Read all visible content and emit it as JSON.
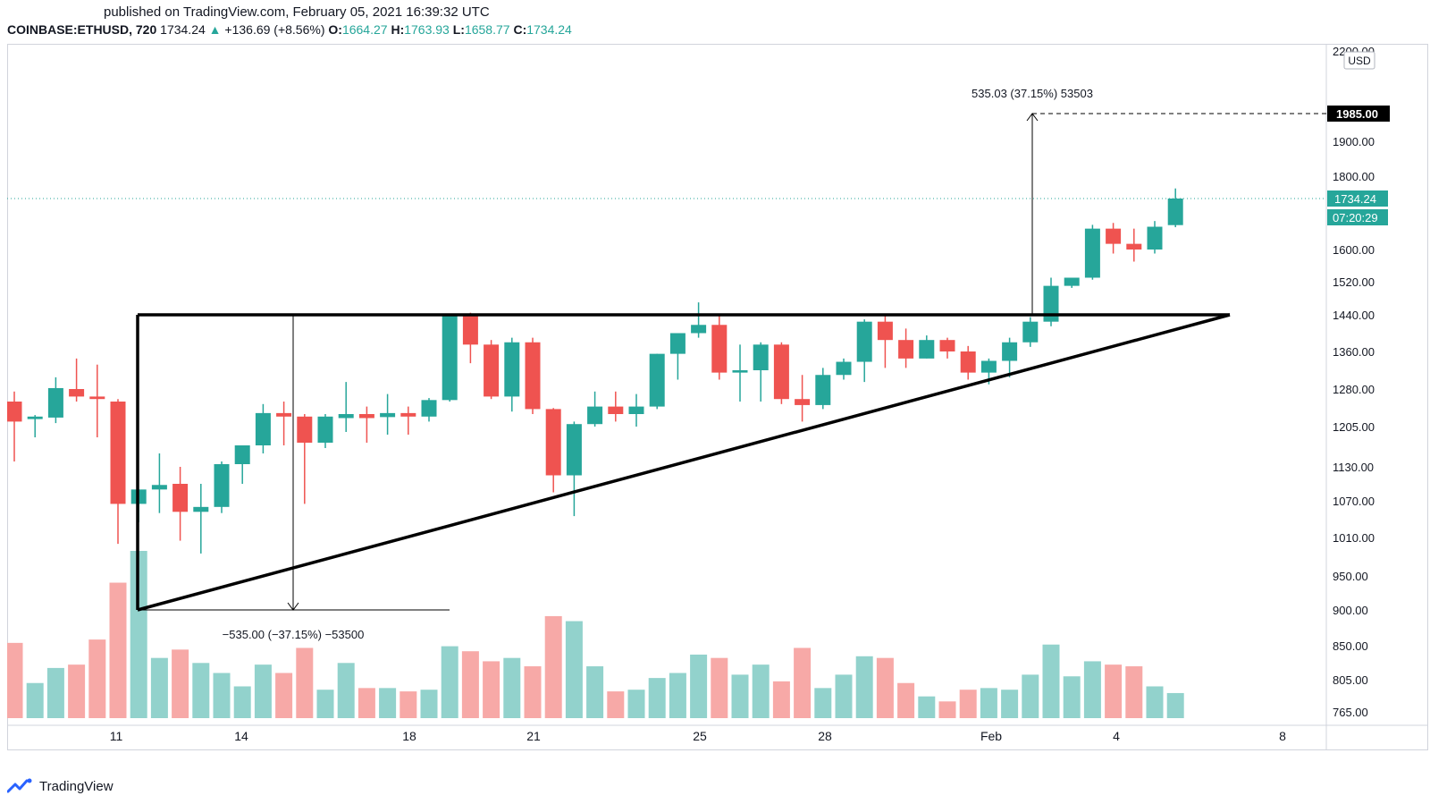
{
  "published": "published on TradingView.com, February 05, 2021 16:39:32 UTC",
  "header": {
    "symbol": "COINBASE:ETHUSD, 720",
    "last": "1734.24",
    "change_arrow": "▲",
    "change": "+136.69 (+8.56%)",
    "open_label": "O:",
    "open": "1664.27",
    "high_label": "H:",
    "high": "1763.93",
    "low_label": "L:",
    "low": "1658.77",
    "close_label": "C:",
    "close": "1734.24"
  },
  "currency": "USD",
  "brand": "TradingView",
  "colors": {
    "up": "#26a69a",
    "down": "#ef5350",
    "up_vol": "#92d2cc",
    "down_vol": "#f7a9a7"
  },
  "chart_data": {
    "type": "candlestick",
    "y_axis_labels": [
      "2200.00",
      "1985.00",
      "1900.00",
      "1800.00",
      "1734.24",
      "1600.00",
      "1520.00",
      "1440.00",
      "1360.00",
      "1280.00",
      "1205.00",
      "1130.00",
      "1070.00",
      "1010.00",
      "950.00",
      "900.00",
      "850.00",
      "805.00",
      "765.00"
    ],
    "x_axis_labels": [
      "11",
      "14",
      "18",
      "21",
      "25",
      "28",
      "Feb",
      "4",
      "8"
    ],
    "price_label": "1734.24",
    "countdown": "07:20:29",
    "target_label": "1985.00",
    "upper_measure_text": "535.03 (37.15%) 53503",
    "lower_measure_text": "−535.00 (−37.15%) −53500",
    "candles": [
      {
        "o": 1255,
        "h": 1275,
        "l": 1140,
        "c": 1215
      },
      {
        "o": 1220,
        "h": 1228,
        "l": 1185,
        "c": 1225
      },
      {
        "o": 1223,
        "h": 1305,
        "l": 1212,
        "c": 1282
      },
      {
        "o": 1280,
        "h": 1345,
        "l": 1255,
        "c": 1265
      },
      {
        "o": 1265,
        "h": 1332,
        "l": 1185,
        "c": 1260
      },
      {
        "o": 1255,
        "h": 1260,
        "l": 1000,
        "c": 1065
      },
      {
        "o": 1065,
        "h": 1090,
        "l": 1035,
        "c": 1090
      },
      {
        "o": 1090,
        "h": 1155,
        "l": 1050,
        "c": 1098
      },
      {
        "o": 1100,
        "h": 1130,
        "l": 1005,
        "c": 1052
      },
      {
        "o": 1052,
        "h": 1100,
        "l": 985,
        "c": 1060
      },
      {
        "o": 1060,
        "h": 1140,
        "l": 1050,
        "c": 1135
      },
      {
        "o": 1135,
        "h": 1170,
        "l": 1100,
        "c": 1170
      },
      {
        "o": 1170,
        "h": 1250,
        "l": 1155,
        "c": 1232
      },
      {
        "o": 1232,
        "h": 1255,
        "l": 1170,
        "c": 1225
      },
      {
        "o": 1225,
        "h": 1230,
        "l": 1065,
        "c": 1175
      },
      {
        "o": 1175,
        "h": 1230,
        "l": 1165,
        "c": 1225
      },
      {
        "o": 1222,
        "h": 1295,
        "l": 1195,
        "c": 1230
      },
      {
        "o": 1230,
        "h": 1245,
        "l": 1175,
        "c": 1222
      },
      {
        "o": 1224,
        "h": 1270,
        "l": 1190,
        "c": 1232
      },
      {
        "o": 1232,
        "h": 1245,
        "l": 1190,
        "c": 1225
      },
      {
        "o": 1225,
        "h": 1262,
        "l": 1215,
        "c": 1258
      },
      {
        "o": 1258,
        "h": 1440,
        "l": 1255,
        "c": 1440
      },
      {
        "o": 1440,
        "h": 1445,
        "l": 1335,
        "c": 1375
      },
      {
        "o": 1375,
        "h": 1385,
        "l": 1260,
        "c": 1265
      },
      {
        "o": 1265,
        "h": 1390,
        "l": 1235,
        "c": 1380
      },
      {
        "o": 1380,
        "h": 1390,
        "l": 1230,
        "c": 1240
      },
      {
        "o": 1240,
        "h": 1242,
        "l": 1085,
        "c": 1115
      },
      {
        "o": 1115,
        "h": 1215,
        "l": 1045,
        "c": 1210
      },
      {
        "o": 1210,
        "h": 1275,
        "l": 1205,
        "c": 1245
      },
      {
        "o": 1245,
        "h": 1275,
        "l": 1215,
        "c": 1230
      },
      {
        "o": 1230,
        "h": 1270,
        "l": 1205,
        "c": 1245
      },
      {
        "o": 1245,
        "h": 1355,
        "l": 1240,
        "c": 1355
      },
      {
        "o": 1355,
        "h": 1395,
        "l": 1300,
        "c": 1400
      },
      {
        "o": 1400,
        "h": 1470,
        "l": 1390,
        "c": 1418
      },
      {
        "o": 1418,
        "h": 1440,
        "l": 1300,
        "c": 1315
      },
      {
        "o": 1315,
        "h": 1375,
        "l": 1255,
        "c": 1320
      },
      {
        "o": 1320,
        "h": 1380,
        "l": 1255,
        "c": 1375
      },
      {
        "o": 1375,
        "h": 1380,
        "l": 1250,
        "c": 1260
      },
      {
        "o": 1260,
        "h": 1310,
        "l": 1215,
        "c": 1248
      },
      {
        "o": 1248,
        "h": 1325,
        "l": 1240,
        "c": 1310
      },
      {
        "o": 1310,
        "h": 1345,
        "l": 1300,
        "c": 1338
      },
      {
        "o": 1338,
        "h": 1430,
        "l": 1295,
        "c": 1425
      },
      {
        "o": 1425,
        "h": 1440,
        "l": 1325,
        "c": 1385
      },
      {
        "o": 1385,
        "h": 1410,
        "l": 1325,
        "c": 1345
      },
      {
        "o": 1345,
        "h": 1395,
        "l": 1345,
        "c": 1385
      },
      {
        "o": 1385,
        "h": 1390,
        "l": 1345,
        "c": 1360
      },
      {
        "o": 1360,
        "h": 1372,
        "l": 1300,
        "c": 1315
      },
      {
        "o": 1315,
        "h": 1345,
        "l": 1290,
        "c": 1340
      },
      {
        "o": 1340,
        "h": 1390,
        "l": 1305,
        "c": 1380
      },
      {
        "o": 1380,
        "h": 1435,
        "l": 1370,
        "c": 1425
      },
      {
        "o": 1425,
        "h": 1530,
        "l": 1415,
        "c": 1510
      },
      {
        "o": 1510,
        "h": 1525,
        "l": 1505,
        "c": 1530
      },
      {
        "o": 1530,
        "h": 1665,
        "l": 1525,
        "c": 1655
      },
      {
        "o": 1655,
        "h": 1670,
        "l": 1590,
        "c": 1615
      },
      {
        "o": 1615,
        "h": 1655,
        "l": 1570,
        "c": 1600
      },
      {
        "o": 1600,
        "h": 1675,
        "l": 1590,
        "c": 1660
      },
      {
        "o": 1664.27,
        "h": 1763.93,
        "l": 1658.77,
        "c": 1734.24
      }
    ],
    "volume_relative": [
      0.45,
      0.21,
      0.3,
      0.32,
      0.47,
      0.81,
      1.0,
      0.36,
      0.41,
      0.33,
      0.27,
      0.19,
      0.32,
      0.27,
      0.42,
      0.17,
      0.33,
      0.18,
      0.18,
      0.16,
      0.17,
      0.43,
      0.4,
      0.34,
      0.36,
      0.31,
      0.61,
      0.58,
      0.31,
      0.16,
      0.17,
      0.24,
      0.27,
      0.38,
      0.36,
      0.26,
      0.32,
      0.22,
      0.42,
      0.18,
      0.26,
      0.37,
      0.36,
      0.21,
      0.13,
      0.1,
      0.17,
      0.18,
      0.17,
      0.26,
      0.44,
      0.25,
      0.34,
      0.32,
      0.31,
      0.19,
      0.15
    ],
    "triangle": {
      "resistance": 1440,
      "base_low": 900
    }
  }
}
